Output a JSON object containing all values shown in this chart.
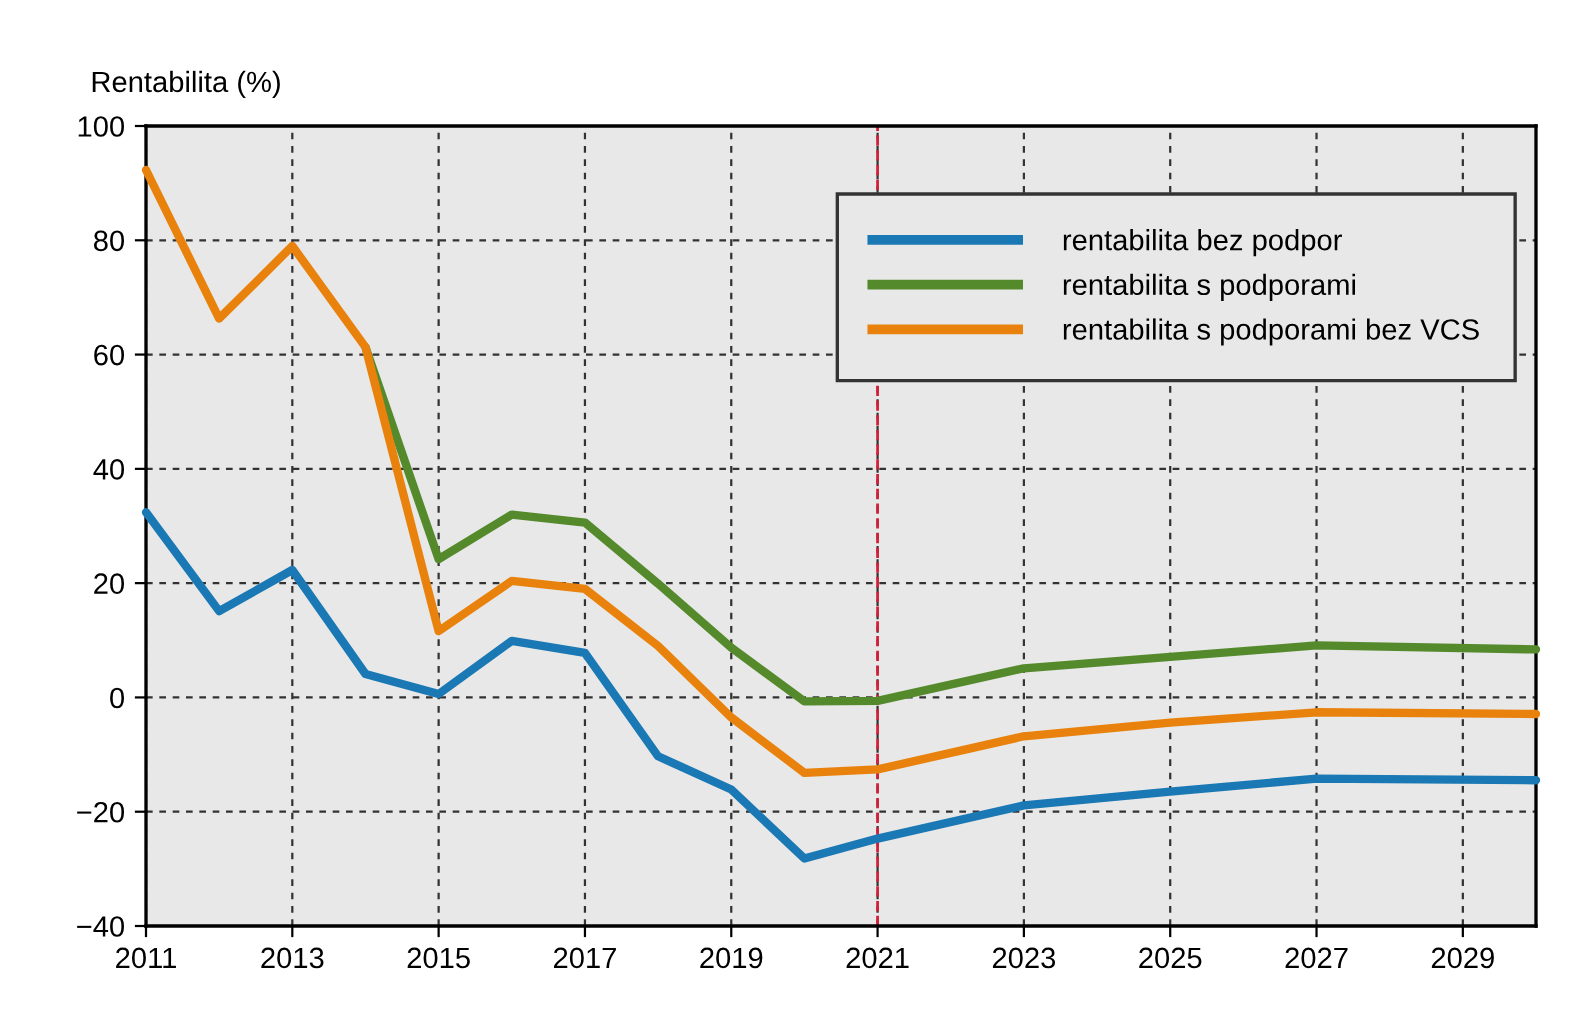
{
  "chart_data": {
    "type": "line",
    "ylabel": "Rentabilita (%)",
    "x": [
      2011,
      2012,
      2013,
      2014,
      2015,
      2016,
      2017,
      2018,
      2019,
      2020,
      2021,
      2023,
      2025,
      2027,
      2030
    ],
    "series": [
      {
        "name": "rentabilita bez podpor",
        "color": "#1a78b4",
        "values": [
          32.4,
          15.1,
          22.3,
          4.1,
          0.6,
          9.9,
          7.8,
          -10.3,
          -16.1,
          -28.2,
          -24.7,
          -18.9,
          -16.5,
          -14.2,
          -14.5
        ]
      },
      {
        "name": "rentabilita s podporami",
        "color": "#548a2c",
        "values": [
          null,
          null,
          null,
          61.3,
          24.2,
          32,
          30.6,
          19.9,
          8.7,
          -0.7,
          -0.6,
          5.1,
          7.1,
          9.1,
          8.4
        ]
      },
      {
        "name": "rentabilita s podporami bez VCS",
        "color": "#e8820c",
        "values": [
          92.3,
          66.3,
          79,
          61.3,
          11.6,
          20.4,
          19,
          9,
          -3.5,
          -13.2,
          -12.6,
          -6.8,
          -4.4,
          -2.6,
          -2.9
        ]
      }
    ],
    "xlim": [
      2011,
      2030
    ],
    "xticks": [
      2011,
      2013,
      2015,
      2017,
      2019,
      2021,
      2023,
      2025,
      2027,
      2029
    ],
    "ylim": [
      -40,
      100
    ],
    "yticks": [
      -40,
      -20,
      0,
      20,
      40,
      60,
      80,
      100
    ],
    "ref_lines": [
      {
        "axis": "x",
        "value": 2021,
        "color": "#d0203a",
        "line_style": "dashed"
      }
    ],
    "grid": true,
    "legend": "top right",
    "line_style": "solid",
    "marker": "none"
  }
}
